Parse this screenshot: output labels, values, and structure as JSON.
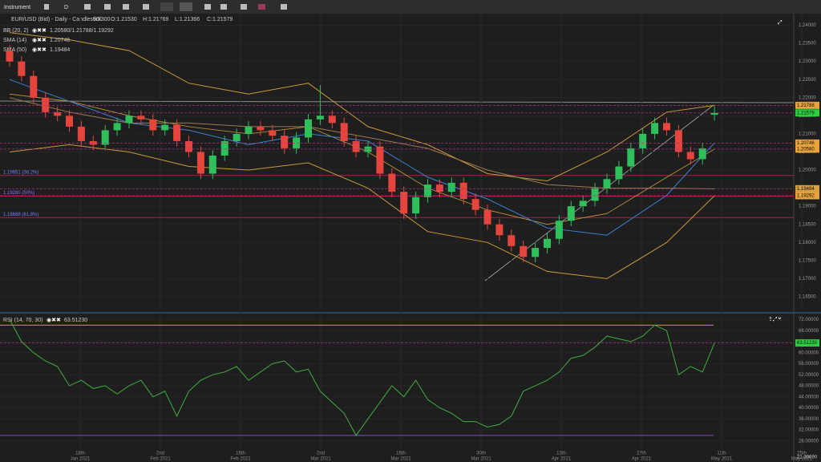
{
  "toolbar": {
    "instrument": "Instrument",
    "period": "D"
  },
  "header": {
    "title": "EUR/USD (Bid) - Daily - Candlestick",
    "count": "90/300",
    "open": "O:1.21530",
    "high": "H:1.21769",
    "low": "L:1.21366",
    "close": "C:1.21579"
  },
  "price_axis": {
    "ylim": [
      1.161,
      1.243
    ],
    "ticks": [
      {
        "value": 1.165,
        "label": "1.16500"
      },
      {
        "value": 1.17,
        "label": "1.17000"
      },
      {
        "value": 1.175,
        "label": "1.17500"
      },
      {
        "value": 1.18,
        "label": "1.18000"
      },
      {
        "value": 1.185,
        "label": "1.18500"
      },
      {
        "value": 1.19,
        "label": "1.19000"
      },
      {
        "value": 1.195,
        "label": "1.19500"
      },
      {
        "value": 1.2,
        "label": "1.20000"
      },
      {
        "value": 1.205,
        "label": "1.20500"
      },
      {
        "value": 1.21,
        "label": "1.21000"
      },
      {
        "value": 1.215,
        "label": "1.21500"
      },
      {
        "value": 1.22,
        "label": "1.22000"
      },
      {
        "value": 1.225,
        "label": "1.22500"
      },
      {
        "value": 1.23,
        "label": "1.23000"
      },
      {
        "value": 1.235,
        "label": "1.23500"
      },
      {
        "value": 1.24,
        "label": "1.24000"
      }
    ]
  },
  "candles": [
    [
      1.233,
      1.2345,
      1.2285,
      1.23
    ],
    [
      1.23,
      1.2315,
      1.2245,
      1.226
    ],
    [
      1.226,
      1.2275,
      1.2185,
      1.22
    ],
    [
      1.22,
      1.2215,
      1.2145,
      1.216
    ],
    [
      1.216,
      1.2175,
      1.2135,
      1.215
    ],
    [
      1.215,
      1.2165,
      1.2105,
      1.212
    ],
    [
      1.212,
      1.2135,
      1.2065,
      1.208
    ],
    [
      1.208,
      1.2095,
      1.2055,
      1.207
    ],
    [
      1.207,
      1.2125,
      1.2055,
      1.211
    ],
    [
      1.211,
      1.2145,
      1.2095,
      1.213
    ],
    [
      1.213,
      1.2165,
      1.2115,
      1.215
    ],
    [
      1.215,
      1.2165,
      1.2125,
      1.214
    ],
    [
      1.214,
      1.2155,
      1.2095,
      1.211
    ],
    [
      1.211,
      1.214,
      1.2095,
      1.2125
    ],
    [
      1.2125,
      1.214,
      1.2065,
      1.208
    ],
    [
      1.208,
      1.2095,
      1.2035,
      1.205
    ],
    [
      1.205,
      1.2065,
      1.1975,
      1.199
    ],
    [
      1.199,
      1.2055,
      1.1975,
      1.204
    ],
    [
      1.204,
      1.2095,
      1.2025,
      1.208
    ],
    [
      1.208,
      1.2115,
      1.2065,
      1.21
    ],
    [
      1.21,
      1.2135,
      1.2085,
      1.212
    ],
    [
      1.212,
      1.2135,
      1.2095,
      1.211
    ],
    [
      1.211,
      1.2125,
      1.208,
      1.2095
    ],
    [
      1.2095,
      1.211,
      1.2045,
      1.206
    ],
    [
      1.206,
      1.2105,
      1.2045,
      1.209
    ],
    [
      1.209,
      1.2155,
      1.2075,
      1.214
    ],
    [
      1.214,
      1.2235,
      1.2125,
      1.215
    ],
    [
      1.215,
      1.2165,
      1.2115,
      1.213
    ],
    [
      1.213,
      1.2145,
      1.2065,
      1.208
    ],
    [
      1.208,
      1.2095,
      1.2035,
      1.205
    ],
    [
      1.205,
      1.208,
      1.2035,
      1.2065
    ],
    [
      1.2065,
      1.208,
      1.1975,
      1.199
    ],
    [
      1.199,
      1.2005,
      1.1925,
      1.194
    ],
    [
      1.194,
      1.1955,
      1.1865,
      1.188
    ],
    [
      1.188,
      1.194,
      1.1865,
      1.1925
    ],
    [
      1.1925,
      1.1975,
      1.191,
      1.196
    ],
    [
      1.196,
      1.1975,
      1.1925,
      1.194
    ],
    [
      1.194,
      1.198,
      1.1925,
      1.1965
    ],
    [
      1.1965,
      1.198,
      1.1905,
      1.192
    ],
    [
      1.192,
      1.1935,
      1.1875,
      1.189
    ],
    [
      1.189,
      1.1905,
      1.1835,
      1.185
    ],
    [
      1.185,
      1.1865,
      1.1805,
      1.182
    ],
    [
      1.182,
      1.1835,
      1.1775,
      1.179
    ],
    [
      1.179,
      1.1805,
      1.1745,
      1.176
    ],
    [
      1.176,
      1.18,
      1.1745,
      1.1785
    ],
    [
      1.1785,
      1.1825,
      1.177,
      1.181
    ],
    [
      1.181,
      1.1875,
      1.1795,
      1.186
    ],
    [
      1.186,
      1.1915,
      1.1845,
      1.19
    ],
    [
      1.19,
      1.193,
      1.1885,
      1.1915
    ],
    [
      1.1915,
      1.1965,
      1.19,
      1.195
    ],
    [
      1.195,
      1.199,
      1.1935,
      1.1975
    ],
    [
      1.1975,
      1.2025,
      1.196,
      1.201
    ],
    [
      1.201,
      1.2075,
      1.1995,
      1.206
    ],
    [
      1.206,
      1.2115,
      1.2045,
      1.21
    ],
    [
      1.21,
      1.2145,
      1.2085,
      1.213
    ],
    [
      1.213,
      1.2145,
      1.2095,
      1.211
    ],
    [
      1.211,
      1.2125,
      1.2035,
      1.205
    ],
    [
      1.205,
      1.2065,
      1.2015,
      1.203
    ],
    [
      1.203,
      1.2075,
      1.2015,
      1.206
    ],
    [
      1.2153,
      1.21769,
      1.21366,
      1.2158
    ]
  ],
  "overlay_x": [
    0,
    5,
    10,
    15,
    20,
    25,
    30,
    35,
    40,
    45,
    50,
    55,
    59
  ],
  "overlays": [
    {
      "name": "BB (20, 2)",
      "value_label": "1.20580/1.21788/1.19292",
      "color": "#c89a3c",
      "upper": [
        1.238,
        1.236,
        1.233,
        1.224,
        1.221,
        1.224,
        1.212,
        1.207,
        1.199,
        1.197,
        1.205,
        1.216,
        1.2179
      ],
      "middle": [
        1.221,
        1.219,
        1.215,
        1.212,
        1.21,
        1.212,
        1.205,
        1.195,
        1.189,
        1.185,
        1.188,
        1.198,
        1.2058
      ],
      "lower": [
        1.205,
        1.207,
        1.205,
        1.201,
        1.2,
        1.202,
        1.195,
        1.183,
        1.18,
        1.172,
        1.17,
        1.18,
        1.1929
      ]
    },
    {
      "name": "SMA (14)",
      "value_label": "1.20746",
      "color": "#3b82d6",
      "values": [
        1.225,
        1.219,
        1.213,
        1.211,
        1.207,
        1.21,
        1.208,
        1.198,
        1.192,
        1.184,
        1.182,
        1.193,
        1.2075
      ]
    },
    {
      "name": "SMA (50)",
      "value_label": "1.19484",
      "color": "#9c7a52",
      "values": [
        1.22,
        1.216,
        1.213,
        1.213,
        1.212,
        1.212,
        1.209,
        1.206,
        1.2,
        1.196,
        1.195,
        1.195,
        1.1948
      ]
    }
  ],
  "fib_levels": [
    {
      "value": 1.19851,
      "label": "1.19851 (38.2%)"
    },
    {
      "value": 1.1928,
      "label": "1.19280 (50%)"
    },
    {
      "value": 1.18688,
      "label": "1.18688 (61.8%)"
    }
  ],
  "price_markers": [
    {
      "value": 1.21788,
      "label": "1.21788",
      "color": "#e6a23c"
    },
    {
      "value": 1.21579,
      "label": "1.21579",
      "color": "#2ecc40"
    },
    {
      "value": 1.20746,
      "label": "1.20746",
      "color": "#e6a23c"
    },
    {
      "value": 1.2058,
      "label": "1.20580",
      "color": "#e6a23c"
    },
    {
      "value": 1.19484,
      "label": "1.19484",
      "color": "#d4a040"
    },
    {
      "value": 1.19292,
      "label": "1.19292",
      "color": "#e6a23c"
    }
  ],
  "x_labels": [
    {
      "day": "18th",
      "month": "Jan 2021"
    },
    {
      "day": "2nd",
      "month": "Feb 2021"
    },
    {
      "day": "16th",
      "month": "Feb 2021"
    },
    {
      "day": "2nd",
      "month": "Mar 2021"
    },
    {
      "day": "16th",
      "month": "Mar 2021"
    },
    {
      "day": "30th",
      "month": "Mar 2021"
    },
    {
      "day": "13th",
      "month": "Apr 2021"
    },
    {
      "day": "27th",
      "month": "Apr 2021"
    },
    {
      "day": "11th",
      "month": "May 2021"
    },
    {
      "day": "25th",
      "month": "May 2021"
    }
  ],
  "rsi": {
    "name": "RSI (14, 70, 30)",
    "value_label": "63.51230",
    "color": "#3fae3f",
    "upper_level": 70,
    "lower_level": 30,
    "ylim": [
      25,
      73
    ],
    "bottom_label": "21.39690",
    "ticks": [
      {
        "value": 28,
        "label": "28.00000"
      },
      {
        "value": 32,
        "label": "32.00000"
      },
      {
        "value": 36,
        "label": "36.00000"
      },
      {
        "value": 40,
        "label": "40.00000"
      },
      {
        "value": 44,
        "label": "44.00000"
      },
      {
        "value": 48,
        "label": "48.00000"
      },
      {
        "value": 52,
        "label": "52.00000"
      },
      {
        "value": 56,
        "label": "56.00000"
      },
      {
        "value": 60,
        "label": "60.00000"
      },
      {
        "value": 64,
        "label": "64.00000"
      },
      {
        "value": 68,
        "label": "68.00000"
      },
      {
        "value": 72,
        "label": "72.00000"
      }
    ],
    "values": [
      72,
      64,
      60,
      57,
      55,
      48,
      50,
      47,
      48,
      45,
      48,
      50,
      44,
      46,
      37,
      46,
      50,
      52,
      53,
      55,
      50,
      53,
      56,
      57,
      53,
      54,
      46,
      42,
      38,
      30,
      36,
      42,
      48,
      44,
      50,
      43,
      40,
      38,
      35,
      35,
      33,
      34,
      37,
      46,
      48,
      50,
      53,
      58,
      59,
      62,
      66,
      65,
      64,
      66,
      70,
      68,
      52,
      55,
      53,
      63.5123
    ]
  }
}
